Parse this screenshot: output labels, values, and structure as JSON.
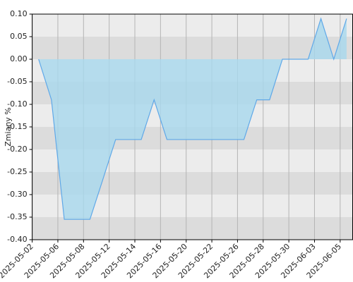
{
  "chart_data": {
    "type": "area",
    "y_label": "Zmiany %",
    "x": [
      "2025-05-02",
      "2025-05-05",
      "2025-05-06",
      "2025-05-07",
      "2025-05-08",
      "2025-05-09",
      "2025-05-12",
      "2025-05-13",
      "2025-05-14",
      "2025-05-15",
      "2025-05-16",
      "2025-05-19",
      "2025-05-20",
      "2025-05-21",
      "2025-05-22",
      "2025-05-23",
      "2025-05-26",
      "2025-05-27",
      "2025-05-28",
      "2025-05-29",
      "2025-05-30",
      "2025-06-02",
      "2025-06-03",
      "2025-06-04",
      "2025-06-05"
    ],
    "values": [
      0,
      -0.09,
      -0.355,
      -0.355,
      -0.355,
      -0.267,
      -0.178,
      -0.178,
      -0.178,
      -0.09,
      -0.178,
      -0.178,
      -0.178,
      -0.178,
      -0.178,
      -0.178,
      -0.178,
      -0.09,
      -0.09,
      0,
      0,
      0,
      0.09,
      0,
      0.09
    ],
    "xticks": [
      "2025-05-02",
      "2025-05-06",
      "2025-05-08",
      "2025-05-12",
      "2025-05-14",
      "2025-05-16",
      "2025-05-20",
      "2025-05-22",
      "2025-05-26",
      "2025-05-28",
      "2025-05-30",
      "2025-06-03",
      "2025-06-05"
    ],
    "ylim": [
      -0.4,
      0.1
    ],
    "yticks": [
      {
        "value": -0.4,
        "label": "-0.40"
      },
      {
        "value": -0.35,
        "label": "-0.35"
      },
      {
        "value": -0.3,
        "label": "-0.30"
      },
      {
        "value": -0.25,
        "label": "-0.25"
      },
      {
        "value": -0.2,
        "label": "-0.20"
      },
      {
        "value": -0.15,
        "label": "-0.15"
      },
      {
        "value": -0.1,
        "label": "-0.10"
      },
      {
        "value": -0.05,
        "label": "-0.05"
      },
      {
        "value": 0,
        "label": "0.00"
      },
      {
        "value": 0.05,
        "label": "0.05"
      },
      {
        "value": 0.1,
        "label": "0.10"
      }
    ],
    "color": "#5fa8e8",
    "fill": "#a8d8ee",
    "grid": true
  }
}
